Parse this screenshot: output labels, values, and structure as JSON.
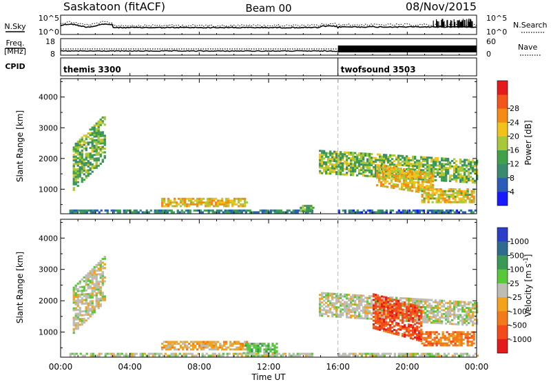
{
  "header": {
    "title": "Saskatoon (fitACF)",
    "beam": "Beam 00",
    "date": "08/Nov/2015"
  },
  "noise_panel": {
    "left_label": "N.Sky",
    "left_ticks": [
      "10^5",
      "10^0"
    ],
    "right_ticks": [
      "10^5",
      "10^0"
    ],
    "right_label": "N.Search"
  },
  "freq_panel": {
    "left_label_line1": "Freq.",
    "left_label_line2": "[MHz]",
    "left_ticks": [
      "18",
      "8"
    ],
    "right_ticks": [
      "60",
      "0"
    ],
    "right_label": "Nave"
  },
  "cpid_panel": {
    "label": "CPID",
    "modes": [
      {
        "name": "themis 3300",
        "start_hour": 0
      },
      {
        "name": "twofsound 3503",
        "start_hour": 16
      }
    ]
  },
  "x_axis": {
    "label": "Time UT",
    "range_hours": [
      0,
      24
    ],
    "tick_labels": [
      "00:00",
      "04:00",
      "08:00",
      "12:00",
      "16:00",
      "20:00",
      "00:00"
    ],
    "tick_hours": [
      0,
      4,
      8,
      12,
      16,
      20,
      24
    ]
  },
  "colors": {
    "power_scale": [
      "#1a1aff",
      "#2a5cb8",
      "#3a8a70",
      "#3fa14a",
      "#a8c83a",
      "#f2c21b",
      "#f58a14",
      "#f2561b",
      "#e41b1b"
    ],
    "velocity_scale": [
      "#2a3ec8",
      "#2d6b8f",
      "#3a9a55",
      "#57c83a",
      "#bdbdb5",
      "#f2a21b",
      "#f27a1b",
      "#f24a1b",
      "#e41b1b"
    ]
  },
  "chart_data": [
    {
      "type": "heatmap",
      "name": "power",
      "ylabel": "Slant Range [km]",
      "ylim": [
        200,
        4600
      ],
      "y_ticks": [
        1000,
        2000,
        3000,
        4000
      ],
      "colorbar": {
        "label": "Power [dB]",
        "range": [
          0,
          32
        ],
        "tick_labels": [
          "4",
          "8",
          "12",
          "16",
          "20",
          "24",
          "28"
        ]
      },
      "regions": [
        {
          "t0": 0.7,
          "t1": 2.6,
          "r_lo": 950,
          "r_hi": 2400,
          "slope": 550,
          "level": 13
        },
        {
          "t0": 5.8,
          "t1": 10.7,
          "r_lo": 420,
          "r_hi": 720,
          "slope": 0,
          "level": 20
        },
        {
          "t0": 0.5,
          "t1": 14.5,
          "r_lo": 220,
          "r_hi": 320,
          "slope": 0,
          "level": 8
        },
        {
          "t0": 13.8,
          "t1": 14.6,
          "r_lo": 250,
          "r_hi": 450,
          "slope": 0,
          "level": 12
        },
        {
          "t0": 14.9,
          "t1": 24.0,
          "r_lo": 1500,
          "r_hi": 2250,
          "slope": -35,
          "level": 14
        },
        {
          "t0": 18.2,
          "t1": 21.5,
          "r_lo": 1100,
          "r_hi": 1800,
          "slope": -90,
          "level": 20
        },
        {
          "t0": 20.8,
          "t1": 23.8,
          "r_lo": 550,
          "r_hi": 1000,
          "slope": 0,
          "level": 19
        },
        {
          "t0": 16.0,
          "t1": 24.0,
          "r_lo": 220,
          "r_hi": 330,
          "slope": 0,
          "level": 6
        }
      ]
    },
    {
      "type": "heatmap",
      "name": "velocity",
      "ylabel": "Slant Range [km]",
      "ylim": [
        200,
        4600
      ],
      "y_ticks": [
        1000,
        2000,
        3000,
        4000
      ],
      "colorbar": {
        "label": "Velocity [m s^-1]",
        "range": [
          -1200,
          1200
        ],
        "tick_labels": [
          "1000",
          "500",
          "100",
          "25",
          "-25",
          "-100",
          "-500",
          "-1000"
        ]
      },
      "regions": [
        {
          "t0": 0.7,
          "t1": 2.6,
          "r_lo": 950,
          "r_hi": 2400,
          "slope": 550,
          "level": 4
        },
        {
          "t0": 5.8,
          "t1": 10.7,
          "r_lo": 420,
          "r_hi": 720,
          "slope": 0,
          "level": 5
        },
        {
          "t0": 10.5,
          "t1": 12.5,
          "r_lo": 300,
          "r_hi": 650,
          "slope": 0,
          "level": 3
        },
        {
          "t0": 0.5,
          "t1": 14.5,
          "r_lo": 220,
          "r_hi": 320,
          "slope": 0,
          "level": 4
        },
        {
          "t0": 14.9,
          "t1": 24.0,
          "r_lo": 1500,
          "r_hi": 2250,
          "slope": -35,
          "level": 4
        },
        {
          "t0": 18.0,
          "t1": 20.8,
          "r_lo": 1100,
          "r_hi": 2200,
          "slope": -150,
          "level": 7
        },
        {
          "t0": 20.8,
          "t1": 23.8,
          "r_lo": 550,
          "r_hi": 1000,
          "slope": 0,
          "level": 6
        },
        {
          "t0": 16.0,
          "t1": 24.0,
          "r_lo": 220,
          "r_hi": 330,
          "slope": 0,
          "level": 4
        }
      ]
    }
  ]
}
